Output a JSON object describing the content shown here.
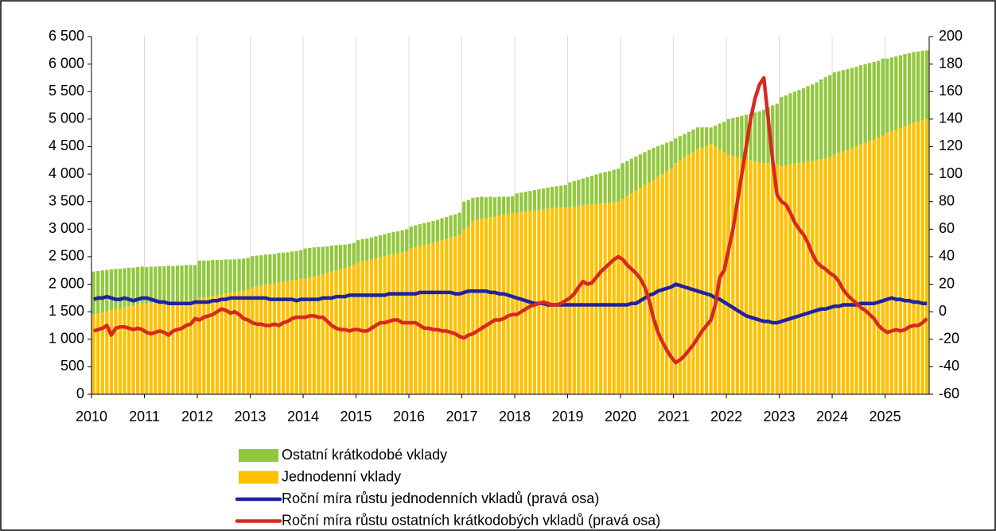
{
  "chart_data": {
    "type": "bar",
    "categories": [
      "2010",
      null,
      null,
      null,
      null,
      null,
      null,
      null,
      null,
      null,
      null,
      null,
      "2011",
      null,
      null,
      null,
      null,
      null,
      null,
      null,
      null,
      null,
      null,
      null,
      "2012",
      null,
      null,
      null,
      null,
      null,
      null,
      null,
      null,
      null,
      null,
      null,
      "2013",
      null,
      null,
      null,
      null,
      null,
      null,
      null,
      null,
      null,
      null,
      null,
      "2014",
      null,
      null,
      null,
      null,
      null,
      null,
      null,
      null,
      null,
      null,
      null,
      "2015",
      null,
      null,
      null,
      null,
      null,
      null,
      null,
      null,
      null,
      null,
      null,
      "2016",
      null,
      null,
      null,
      null,
      null,
      null,
      null,
      null,
      null,
      null,
      null,
      "2017",
      null,
      null,
      null,
      null,
      null,
      null,
      null,
      null,
      null,
      null,
      null,
      "2018",
      null,
      null,
      null,
      null,
      null,
      null,
      null,
      null,
      null,
      null,
      null,
      "2019",
      null,
      null,
      null,
      null,
      null,
      null,
      null,
      null,
      null,
      null,
      null,
      "2020",
      null,
      null,
      null,
      null,
      null,
      null,
      null,
      null,
      null,
      null,
      null,
      "2021",
      null,
      null,
      null,
      null,
      null,
      null,
      null,
      null,
      null,
      null,
      null,
      "2022",
      null,
      null,
      null,
      null,
      null,
      null,
      null,
      null,
      null,
      null,
      null,
      "2023",
      null,
      null,
      null,
      null,
      null,
      null,
      null,
      null,
      null,
      null,
      null,
      "2024",
      null,
      null,
      null,
      null,
      null,
      null,
      null,
      null,
      null,
      null,
      null,
      "2025",
      null,
      null,
      null,
      null,
      null,
      null,
      null,
      null,
      null
    ],
    "series": [
      {
        "name": "Ostatní krátkodobé vklady",
        "type": "bar",
        "color": "#92c83e",
        "values": [
          780,
          770,
          760,
          750,
          740,
          730,
          720,
          710,
          700,
          690,
          680,
          670,
          660,
          660,
          660,
          655,
          655,
          655,
          650,
          650,
          650,
          650,
          650,
          650,
          680,
          670,
          660,
          650,
          640,
          630,
          620,
          610,
          600,
          590,
          585,
          580,
          560,
          560,
          555,
          550,
          545,
          540,
          540,
          535,
          530,
          525,
          520,
          520,
          550,
          540,
          530,
          515,
          500,
          490,
          475,
          460,
          445,
          430,
          415,
          400,
          400,
          400,
          400,
          400,
          400,
          400,
          400,
          400,
          400,
          400,
          400,
          400,
          400,
          400,
          400,
          400,
          400,
          400,
          400,
          400,
          400,
          400,
          400,
          400,
          500,
          480,
          420,
          410,
          400,
          380,
          370,
          350,
          340,
          330,
          310,
          300,
          350,
          355,
          360,
          365,
          370,
          375,
          380,
          385,
          390,
          390,
          395,
          400,
          450,
          465,
          480,
          490,
          505,
          520,
          535,
          550,
          565,
          575,
          590,
          600,
          650,
          640,
          630,
          620,
          610,
          600,
          590,
          580,
          560,
          540,
          520,
          500,
          450,
          440,
          430,
          420,
          410,
          400,
          370,
          340,
          300,
          380,
          470,
          550,
          650,
          690,
          730,
          770,
          810,
          850,
          890,
          930,
          970,
          1010,
          1060,
          1100,
          1250,
          1270,
          1290,
          1310,
          1330,
          1350,
          1370,
          1390,
          1420,
          1450,
          1480,
          1500,
          1500,
          1490,
          1480,
          1470,
          1460,
          1450,
          1440,
          1430,
          1420,
          1410,
          1400,
          1400,
          1350,
          1340,
          1330,
          1320,
          1310,
          1300,
          1290,
          1280,
          1260,
          1250
        ]
      },
      {
        "name": "Jednodenní vklady",
        "type": "bar",
        "color": "#ffc000",
        "values": [
          1450,
          1470,
          1490,
          1510,
          1530,
          1550,
          1560,
          1580,
          1600,
          1610,
          1630,
          1650,
          1650,
          1660,
          1660,
          1670,
          1670,
          1680,
          1680,
          1690,
          1690,
          1700,
          1700,
          1700,
          1750,
          1760,
          1770,
          1790,
          1800,
          1810,
          1830,
          1840,
          1850,
          1870,
          1880,
          1900,
          1950,
          1960,
          1970,
          1990,
          2000,
          2010,
          2030,
          2040,
          2050,
          2070,
          2080,
          2100,
          2100,
          2120,
          2140,
          2160,
          2180,
          2200,
          2230,
          2250,
          2270,
          2290,
          2320,
          2350,
          2400,
          2420,
          2430,
          2450,
          2470,
          2490,
          2510,
          2530,
          2550,
          2560,
          2580,
          2600,
          2650,
          2670,
          2690,
          2710,
          2730,
          2750,
          2770,
          2800,
          2820,
          2850,
          2870,
          2900,
          3000,
          3050,
          3150,
          3170,
          3190,
          3200,
          3220,
          3230,
          3250,
          3260,
          3280,
          3300,
          3300,
          3310,
          3320,
          3330,
          3340,
          3350,
          3360,
          3370,
          3380,
          3390,
          3395,
          3400,
          3400,
          3410,
          3420,
          3430,
          3440,
          3450,
          3460,
          3470,
          3475,
          3480,
          3490,
          3500,
          3550,
          3600,
          3650,
          3700,
          3750,
          3800,
          3850,
          3900,
          3950,
          4000,
          4050,
          4100,
          4200,
          4250,
          4300,
          4350,
          4400,
          4450,
          4480,
          4510,
          4550,
          4500,
          4450,
          4400,
          4350,
          4330,
          4310,
          4290,
          4270,
          4250,
          4230,
          4210,
          4200,
          4200,
          4190,
          4180,
          4150,
          4160,
          4180,
          4190,
          4200,
          4210,
          4230,
          4240,
          4250,
          4270,
          4280,
          4300,
          4350,
          4380,
          4410,
          4440,
          4470,
          4500,
          4540,
          4570,
          4600,
          4630,
          4660,
          4700,
          4750,
          4780,
          4810,
          4840,
          4870,
          4900,
          4930,
          4950,
          4980,
          5000
        ]
      },
      {
        "name": "Roční míra růstu jednodenních vkladů (pravá osa)",
        "type": "line",
        "axis": "y2",
        "color": "#1f23a0",
        "values": [
          9,
          10,
          10,
          11,
          10,
          9,
          9,
          10,
          9,
          8,
          9,
          10,
          10,
          9,
          8,
          7,
          7,
          6,
          6,
          6,
          6,
          6,
          6,
          7,
          7,
          7,
          7,
          8,
          8,
          9,
          9,
          10,
          10,
          10,
          10,
          10,
          10,
          10,
          10,
          10,
          9,
          9,
          9,
          9,
          9,
          9,
          8,
          9,
          9,
          9,
          9,
          9,
          10,
          10,
          10,
          11,
          11,
          11,
          12,
          12,
          12,
          12,
          12,
          12,
          12,
          12,
          12,
          13,
          13,
          13,
          13,
          13,
          13,
          13,
          14,
          14,
          14,
          14,
          14,
          14,
          14,
          14,
          13,
          13,
          14,
          15,
          15,
          15,
          15,
          15,
          14,
          14,
          13,
          13,
          12,
          11,
          10,
          9,
          8,
          7,
          6,
          6,
          6,
          5,
          5,
          5,
          5,
          5,
          5,
          5,
          5,
          5,
          5,
          5,
          5,
          5,
          5,
          5,
          5,
          5,
          5,
          5,
          6,
          6,
          8,
          10,
          12,
          13,
          15,
          16,
          17,
          18,
          20,
          19,
          18,
          17,
          16,
          15,
          14,
          13,
          12,
          10,
          9,
          7,
          5,
          3,
          1,
          -1,
          -3,
          -4,
          -5,
          -6,
          -7,
          -7,
          -8,
          -8,
          -7,
          -6,
          -5,
          -4,
          -3,
          -2,
          -1,
          0,
          1,
          2,
          2,
          3,
          4,
          4,
          5,
          5,
          5,
          5,
          6,
          6,
          6,
          6,
          7,
          8,
          9,
          10,
          9,
          9,
          8,
          8,
          7,
          7,
          6,
          6
        ]
      },
      {
        "name": "Roční míra růstu ostatních krátkodobých vkladů (pravá osa)",
        "type": "line",
        "axis": "y2",
        "color": "#d7291f",
        "values": [
          -14,
          -13,
          -12,
          -10,
          -17,
          -12,
          -11,
          -11,
          -12,
          -13,
          -12,
          -13,
          -15,
          -16,
          -15,
          -14,
          -15,
          -17,
          -14,
          -13,
          -12,
          -10,
          -9,
          -5,
          -6,
          -4,
          -3,
          -2,
          0,
          2,
          1,
          -1,
          0,
          -2,
          -5,
          -6,
          -8,
          -9,
          -9,
          -10,
          -10,
          -9,
          -10,
          -8,
          -7,
          -5,
          -4,
          -4,
          -4,
          -3,
          -3,
          -4,
          -4,
          -7,
          -10,
          -12,
          -13,
          -13,
          -14,
          -13,
          -13,
          -14,
          -14,
          -12,
          -10,
          -8,
          -8,
          -7,
          -6,
          -6,
          -8,
          -8,
          -8,
          -8,
          -10,
          -12,
          -12,
          -13,
          -13,
          -14,
          -14,
          -15,
          -16,
          -18,
          -19,
          -17,
          -16,
          -14,
          -12,
          -10,
          -8,
          -6,
          -6,
          -5,
          -3,
          -2,
          -2,
          0,
          2,
          4,
          5,
          6,
          7,
          6,
          5,
          5,
          6,
          8,
          10,
          13,
          18,
          22,
          20,
          21,
          25,
          29,
          32,
          35,
          38,
          40,
          38,
          34,
          31,
          28,
          24,
          18,
          8,
          -5,
          -15,
          -22,
          -28,
          -33,
          -37,
          -35,
          -32,
          -28,
          -24,
          -19,
          -14,
          -10,
          -6,
          5,
          25,
          30,
          45,
          60,
          80,
          100,
          120,
          140,
          155,
          165,
          170,
          140,
          110,
          85,
          80,
          78,
          72,
          65,
          60,
          56,
          50,
          42,
          36,
          33,
          31,
          28,
          26,
          22,
          16,
          12,
          9,
          6,
          3,
          1,
          -2,
          -5,
          -10,
          -13,
          -15,
          -14,
          -13,
          -14,
          -13,
          -11,
          -10,
          -10,
          -8,
          -5
        ]
      }
    ],
    "ylim": [
      0,
      6500
    ],
    "yticks": [
      0,
      {
        "value": 500,
        "label": "500"
      },
      {
        "value": 1000,
        "label": "1 000"
      },
      {
        "value": 1500,
        "label": "1 500"
      },
      {
        "value": 2000,
        "label": "2 000"
      },
      {
        "value": 2500,
        "label": "2 500"
      },
      {
        "value": 3000,
        "label": "3 000"
      },
      {
        "value": 3500,
        "label": "3 500"
      },
      {
        "value": 4000,
        "label": "4 000"
      },
      {
        "value": 4500,
        "label": "4 500"
      },
      {
        "value": 5000,
        "label": "5 000"
      },
      {
        "value": 5500,
        "label": "5 500"
      },
      {
        "value": 6000,
        "label": "6 000"
      },
      {
        "value": 6500,
        "label": "6 500"
      }
    ],
    "y2lim": [
      -60,
      200
    ],
    "y2ticks": [
      -60,
      -40,
      -20,
      0,
      20,
      40,
      60,
      80,
      100,
      120,
      140,
      160,
      180,
      200
    ],
    "grid": true,
    "legend": "bottom"
  }
}
